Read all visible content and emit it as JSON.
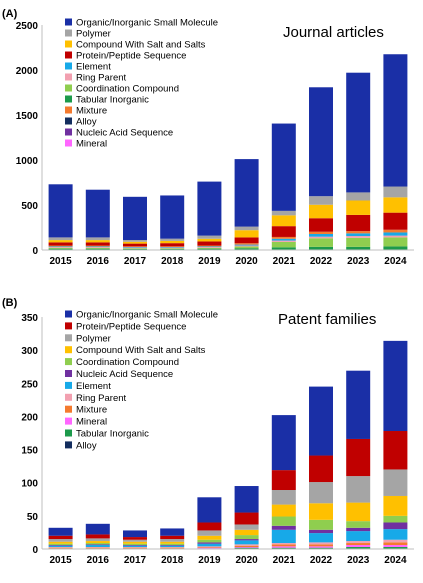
{
  "chart_data": [
    {
      "panel_label": "(A)",
      "title": "Journal articles",
      "type": "bar",
      "stacked": true,
      "categories": [
        "2015",
        "2016",
        "2017",
        "2018",
        "2019",
        "2020",
        "2021",
        "2022",
        "2023",
        "2024"
      ],
      "yticks": [
        "0",
        "500",
        "1000",
        "1500",
        "2000",
        "2500"
      ],
      "ylim": [
        0,
        2500
      ],
      "legend_placement": "top-left",
      "series": [
        {
          "name": "Tabular Inorganic",
          "color": "#1c9a4b",
          "values": [
            15,
            15,
            12,
            12,
            15,
            20,
            30,
            35,
            35,
            40
          ]
        },
        {
          "name": "Coordination Compound",
          "color": "#8fce4f",
          "values": [
            10,
            10,
            8,
            8,
            10,
            20,
            60,
            95,
            100,
            100
          ]
        },
        {
          "name": "Ring Parent",
          "color": "#f2a0b0",
          "values": [
            8,
            8,
            7,
            7,
            8,
            10,
            15,
            18,
            20,
            20
          ]
        },
        {
          "name": "Element",
          "color": "#17a9e8",
          "values": [
            7,
            7,
            6,
            6,
            7,
            10,
            20,
            30,
            30,
            35
          ]
        },
        {
          "name": "Mixture",
          "color": "#f47a2e",
          "values": [
            10,
            10,
            8,
            8,
            10,
            15,
            20,
            25,
            25,
            30
          ]
        },
        {
          "name": "Protein/Peptide Sequence",
          "color": "#c00000",
          "values": [
            35,
            35,
            30,
            35,
            45,
            65,
            120,
            150,
            180,
            190
          ]
        },
        {
          "name": "Compound With Salt and Salts",
          "color": "#ffc000",
          "values": [
            25,
            25,
            20,
            25,
            30,
            80,
            120,
            150,
            160,
            170
          ]
        },
        {
          "name": "Polymer",
          "color": "#a5a5a5",
          "values": [
            30,
            30,
            20,
            25,
            35,
            40,
            50,
            95,
            90,
            120
          ]
        },
        {
          "name": "Organic/Inorganic Small Molecule",
          "color": "#1a2fa6",
          "values": [
            590,
            530,
            480,
            480,
            600,
            750,
            970,
            1210,
            1330,
            1470
          ]
        }
      ],
      "legend": [
        {
          "name": "Organic/Inorganic Small Molecule",
          "color": "#1a2fa6"
        },
        {
          "name": "Polymer",
          "color": "#a5a5a5"
        },
        {
          "name": "Compound With Salt and Salts",
          "color": "#ffc000"
        },
        {
          "name": "Protein/Peptide Sequence",
          "color": "#c00000"
        },
        {
          "name": "Element",
          "color": "#17a9e8"
        },
        {
          "name": "Ring Parent",
          "color": "#f2a0b0"
        },
        {
          "name": "Coordination Compound",
          "color": "#8fce4f"
        },
        {
          "name": "Tabular Inorganic",
          "color": "#1c9a4b"
        },
        {
          "name": "Mixture",
          "color": "#f47a2e"
        },
        {
          "name": "Alloy",
          "color": "#132d5e"
        },
        {
          "name": "Nucleic Acid Sequence",
          "color": "#7030a0"
        },
        {
          "name": "Mineral",
          "color": "#ff66ff"
        }
      ]
    },
    {
      "panel_label": "(B)",
      "title": "Patent families",
      "type": "bar",
      "stacked": true,
      "categories": [
        "2015",
        "2016",
        "2017",
        "2018",
        "2019",
        "2020",
        "2021",
        "2022",
        "2023",
        "2024"
      ],
      "yticks": [
        "0",
        "50",
        "100",
        "150",
        "200",
        "250",
        "300",
        "350"
      ],
      "ylim": [
        0,
        350
      ],
      "legend_placement": "top-left",
      "series": [
        {
          "name": "Tabular Inorganic",
          "color": "#1c9a4b",
          "values": [
            1,
            1,
            1,
            1,
            1,
            2,
            2,
            2,
            3,
            3
          ]
        },
        {
          "name": "Mineral",
          "color": "#ff66ff",
          "values": [
            0,
            0,
            0,
            0,
            1,
            1,
            2,
            2,
            3,
            3
          ]
        },
        {
          "name": "Mixture",
          "color": "#f47a2e",
          "values": [
            1,
            1,
            1,
            1,
            1,
            2,
            3,
            3,
            3,
            4
          ]
        },
        {
          "name": "Ring Parent",
          "color": "#f2a0b0",
          "values": [
            1,
            1,
            1,
            1,
            1,
            2,
            2,
            3,
            3,
            4
          ]
        },
        {
          "name": "Element",
          "color": "#17a9e8",
          "values": [
            2,
            3,
            2,
            2,
            4,
            6,
            20,
            14,
            15,
            16
          ]
        },
        {
          "name": "Nucleic Acid Sequence",
          "color": "#7030a0",
          "values": [
            1,
            1,
            1,
            1,
            2,
            2,
            6,
            5,
            5,
            10
          ]
        },
        {
          "name": "Coordination Compound",
          "color": "#8fce4f",
          "values": [
            2,
            2,
            2,
            2,
            4,
            6,
            14,
            15,
            10,
            10
          ]
        },
        {
          "name": "Compound With Salt and Salts",
          "color": "#ffc000",
          "values": [
            3,
            3,
            3,
            3,
            6,
            8,
            18,
            25,
            28,
            30
          ]
        },
        {
          "name": "Polymer",
          "color": "#a5a5a5",
          "values": [
            4,
            4,
            3,
            4,
            8,
            8,
            22,
            32,
            40,
            40
          ]
        },
        {
          "name": "Protein/Peptide Sequence",
          "color": "#c00000",
          "values": [
            5,
            6,
            4,
            5,
            12,
            18,
            30,
            40,
            56,
            58
          ]
        },
        {
          "name": "Organic/Inorganic Small Molecule",
          "color": "#1a2fa6",
          "values": [
            12,
            16,
            10,
            11,
            38,
            40,
            83,
            104,
            103,
            136
          ]
        }
      ],
      "legend": [
        {
          "name": "Organic/Inorganic Small Molecule",
          "color": "#1a2fa6"
        },
        {
          "name": "Protein/Peptide Sequence",
          "color": "#c00000"
        },
        {
          "name": "Polymer",
          "color": "#a5a5a5"
        },
        {
          "name": "Compound With Salt and Salts",
          "color": "#ffc000"
        },
        {
          "name": "Coordination Compound",
          "color": "#8fce4f"
        },
        {
          "name": "Nucleic Acid Sequence",
          "color": "#7030a0"
        },
        {
          "name": "Element",
          "color": "#17a9e8"
        },
        {
          "name": "Ring Parent",
          "color": "#f2a0b0"
        },
        {
          "name": "Mixture",
          "color": "#f47a2e"
        },
        {
          "name": "Mineral",
          "color": "#ff66ff"
        },
        {
          "name": "Tabular Inorganic",
          "color": "#1c9a4b"
        },
        {
          "name": "Alloy",
          "color": "#132d5e"
        }
      ]
    }
  ]
}
